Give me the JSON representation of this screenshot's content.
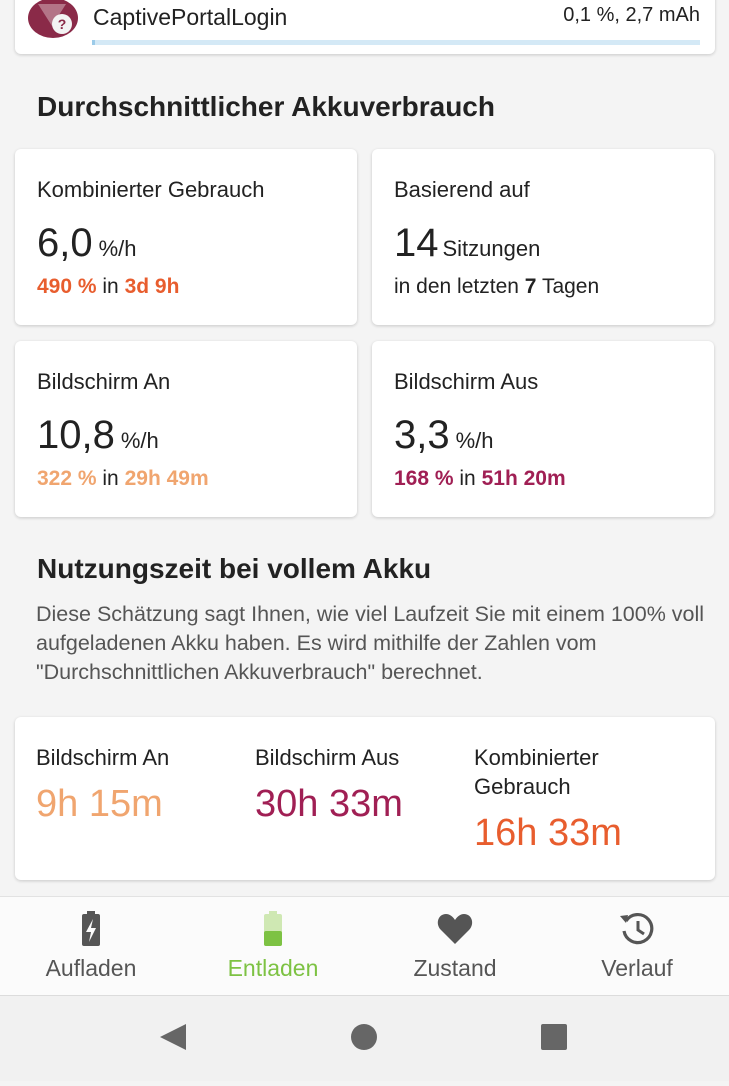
{
  "app_entry": {
    "name": "CaptivePortalLogin",
    "usage": "0,1 %, 2,7 mAh",
    "bar_fill_fraction": 0.001
  },
  "average": {
    "title": "Durchschnittlicher Akkuverbrauch",
    "combined": {
      "label": "Kombinierter Gebrauch",
      "value": "6,0",
      "unit": "%/h",
      "sub_percent": "490 %",
      "sub_in": "in",
      "sub_time": "3d 9h"
    },
    "based_on": {
      "label": "Basierend auf",
      "value": "14",
      "unit": "Sitzungen",
      "sub_prefix": "in den letzten",
      "sub_days": "7",
      "sub_suffix": "Tagen"
    },
    "screen_on": {
      "label": "Bildschirm An",
      "value": "10,8",
      "unit": "%/h",
      "sub_percent": "322 %",
      "sub_in": "in",
      "sub_time": "29h 49m"
    },
    "screen_off": {
      "label": "Bildschirm Aus",
      "value": "3,3",
      "unit": "%/h",
      "sub_percent": "168 %",
      "sub_in": "in",
      "sub_time": "51h 20m"
    }
  },
  "full_charge": {
    "title": "Nutzungszeit bei vollem Akku",
    "description": "Diese Schätzung sagt Ihnen, wie viel Laufzeit Sie mit einem 100% voll aufgeladenen Akku haben. Es wird mithilfe der Zahlen vom \"Durchschnittlichen Akkuverbrauch\" berechnet.",
    "screen_on": {
      "label": "Bildschirm An",
      "value": "9h 15m"
    },
    "screen_off": {
      "label": "Bildschirm Aus",
      "value": "30h 33m"
    },
    "combined": {
      "label": "Kombinierter Gebrauch",
      "value": "16h 33m"
    }
  },
  "nav": {
    "items": [
      {
        "label": "Aufladen",
        "icon": "battery-charging-icon"
      },
      {
        "label": "Entladen",
        "icon": "battery-discharge-icon",
        "active": true
      },
      {
        "label": "Zustand",
        "icon": "heart-icon"
      },
      {
        "label": "Verlauf",
        "icon": "history-icon"
      }
    ]
  },
  "colors": {
    "accent_green": "#7dc243",
    "orange": "#e85d2e",
    "peach": "#f0a56f",
    "plum": "#a01f54"
  }
}
